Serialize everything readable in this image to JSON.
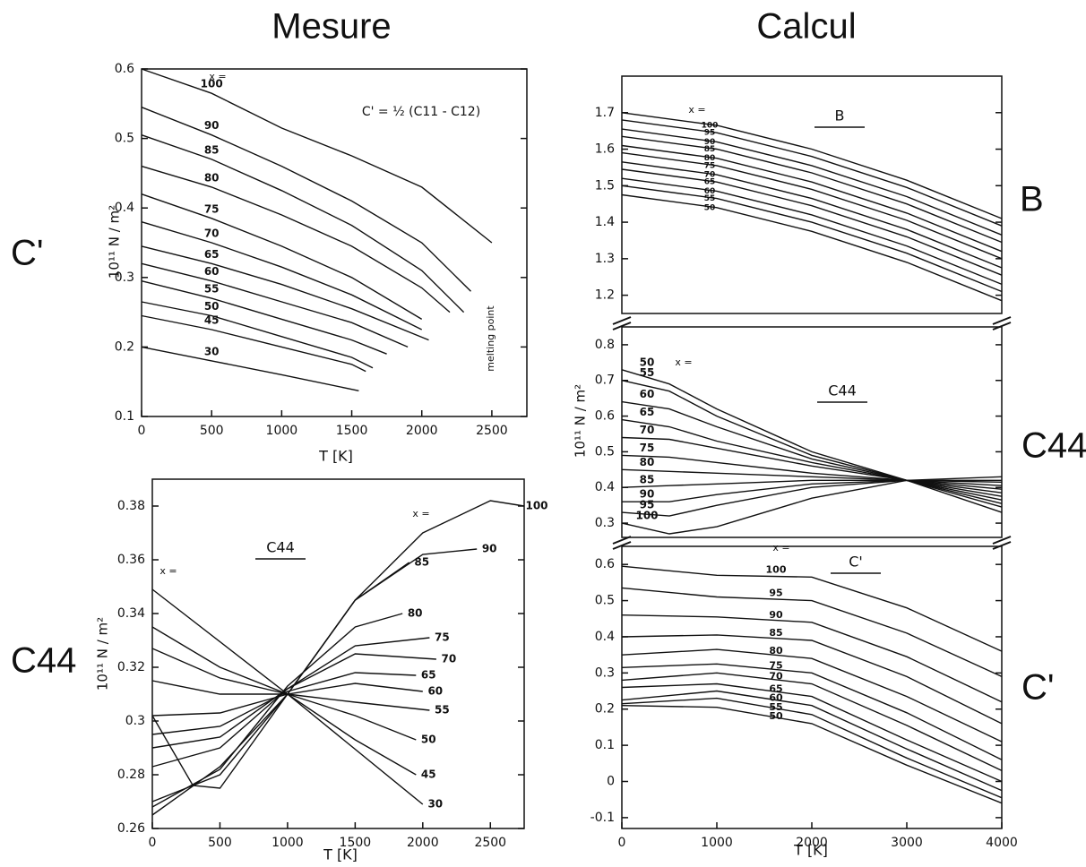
{
  "headers": {
    "left": "Mesure",
    "right": "Calcul"
  },
  "side_labels": [
    "C'",
    "C44",
    "B",
    "C44",
    "C'"
  ],
  "chart_data": [
    {
      "type": "line",
      "title": "C' = ½ (C11 - C12)",
      "x_label": "T [K]",
      "y_label": "10¹¹ N / m²",
      "color": "#111111",
      "annotations": [
        "x =",
        "melting point"
      ],
      "xlim": [
        0,
        2750
      ],
      "ylim": [
        0.1,
        0.6
      ],
      "xticks": [
        0,
        500,
        1000,
        1500,
        2000,
        2500
      ],
      "yticks": [
        0.1,
        0.2,
        0.3,
        0.4,
        0.5,
        0.6
      ],
      "series": [
        {
          "name": "100",
          "x": [
            0,
            500,
            1000,
            1500,
            2000,
            2500
          ],
          "values": [
            0.6,
            0.565,
            0.515,
            0.475,
            0.43,
            0.35
          ]
        },
        {
          "name": "90",
          "x": [
            0,
            500,
            1000,
            1500,
            2000,
            2350
          ],
          "values": [
            0.545,
            0.505,
            0.46,
            0.41,
            0.35,
            0.28
          ]
        },
        {
          "name": "85",
          "x": [
            0,
            500,
            1000,
            1500,
            2000,
            2300
          ],
          "values": [
            0.505,
            0.47,
            0.425,
            0.375,
            0.31,
            0.25
          ]
        },
        {
          "name": "80",
          "x": [
            0,
            500,
            1000,
            1500,
            2000,
            2200
          ],
          "values": [
            0.46,
            0.43,
            0.39,
            0.345,
            0.285,
            0.25
          ]
        },
        {
          "name": "75",
          "x": [
            0,
            500,
            1000,
            1500,
            2000
          ],
          "values": [
            0.42,
            0.385,
            0.345,
            0.3,
            0.24
          ]
        },
        {
          "name": "70",
          "x": [
            0,
            500,
            1000,
            1500,
            2000
          ],
          "values": [
            0.38,
            0.35,
            0.315,
            0.275,
            0.225
          ]
        },
        {
          "name": "65",
          "x": [
            0,
            500,
            1000,
            1500,
            2050
          ],
          "values": [
            0.345,
            0.32,
            0.29,
            0.255,
            0.21
          ]
        },
        {
          "name": "60",
          "x": [
            0,
            500,
            1000,
            1500,
            1900
          ],
          "values": [
            0.32,
            0.295,
            0.265,
            0.235,
            0.2
          ]
        },
        {
          "name": "55",
          "x": [
            0,
            500,
            1000,
            1500,
            1750
          ],
          "values": [
            0.295,
            0.27,
            0.24,
            0.21,
            0.19
          ]
        },
        {
          "name": "50",
          "x": [
            0,
            500,
            1000,
            1500,
            1650
          ],
          "values": [
            0.265,
            0.245,
            0.215,
            0.185,
            0.17
          ]
        },
        {
          "name": "45",
          "x": [
            0,
            500,
            1000,
            1500,
            1600
          ],
          "values": [
            0.245,
            0.225,
            0.2,
            0.175,
            0.165
          ]
        },
        {
          "name": "30",
          "x": [
            0,
            500,
            1000,
            1550
          ],
          "values": [
            0.2,
            0.18,
            0.16,
            0.137
          ]
        }
      ]
    },
    {
      "type": "line",
      "title": "C44",
      "x_label": "T [K]",
      "y_label": "10¹¹ N / m²",
      "color": "#111111",
      "annotations": [
        "x =",
        "x ="
      ],
      "xlim": [
        0,
        2750
      ],
      "ylim": [
        0.26,
        0.39
      ],
      "xticks": [
        0,
        500,
        1000,
        1500,
        2000,
        2500
      ],
      "yticks": [
        0.26,
        0.28,
        0.3,
        0.32,
        0.34,
        0.36,
        0.38
      ],
      "series": [
        {
          "name": "30",
          "x": [
            0,
            1000,
            2000
          ],
          "values": [
            0.349,
            0.31,
            0.269
          ]
        },
        {
          "name": "45",
          "x": [
            0,
            500,
            1000,
            1500,
            1950
          ],
          "values": [
            0.335,
            0.32,
            0.31,
            0.293,
            0.28
          ]
        },
        {
          "name": "50",
          "x": [
            0,
            500,
            1000,
            1500,
            1950
          ],
          "values": [
            0.327,
            0.316,
            0.31,
            0.302,
            0.293
          ]
        },
        {
          "name": "55",
          "x": [
            0,
            500,
            1000,
            1500,
            2050
          ],
          "values": [
            0.315,
            0.31,
            0.31,
            0.307,
            0.304
          ]
        },
        {
          "name": "60",
          "x": [
            0,
            500,
            1000,
            1500,
            2000
          ],
          "values": [
            0.302,
            0.303,
            0.31,
            0.314,
            0.311
          ]
        },
        {
          "name": "65",
          "x": [
            0,
            500,
            1000,
            1500,
            1950
          ],
          "values": [
            0.295,
            0.298,
            0.311,
            0.318,
            0.317
          ]
        },
        {
          "name": "70",
          "x": [
            0,
            500,
            1000,
            1500,
            2100
          ],
          "values": [
            0.29,
            0.294,
            0.312,
            0.325,
            0.323
          ]
        },
        {
          "name": "75",
          "x": [
            0,
            500,
            1000,
            1500,
            2050
          ],
          "values": [
            0.283,
            0.29,
            0.312,
            0.328,
            0.331
          ]
        },
        {
          "name": "80",
          "x": [
            0,
            500,
            1000,
            1500,
            1850
          ],
          "values": [
            0.268,
            0.282,
            0.313,
            0.335,
            0.34
          ]
        },
        {
          "name": "85",
          "x": [
            0,
            500,
            1000,
            1500,
            1900
          ],
          "values": [
            0.265,
            0.283,
            0.31,
            0.345,
            0.359
          ]
        },
        {
          "name": "90",
          "x": [
            0,
            500,
            1000,
            1500,
            2000,
            2400
          ],
          "values": [
            0.27,
            0.28,
            0.31,
            0.345,
            0.362,
            0.364
          ]
        },
        {
          "name": "100",
          "x": [
            0,
            300,
            500,
            1000,
            1500,
            2000,
            2500,
            2750
          ],
          "values": [
            0.302,
            0.276,
            0.275,
            0.31,
            0.345,
            0.37,
            0.382,
            0.38
          ]
        }
      ]
    },
    {
      "type": "line",
      "title": "B",
      "color": "#111111",
      "annotations": [
        "x ="
      ],
      "xlim": [
        0,
        4000
      ],
      "ylim": [
        1.15,
        1.8
      ],
      "yticks": [
        1.2,
        1.3,
        1.4,
        1.5,
        1.6,
        1.7
      ],
      "series": [
        {
          "name": "100",
          "x": [
            0,
            1000,
            2000,
            3000,
            4000
          ],
          "values": [
            1.7,
            1.665,
            1.6,
            1.515,
            1.41
          ]
        },
        {
          "name": "95",
          "x": [
            0,
            1000,
            2000,
            3000,
            4000
          ],
          "values": [
            1.68,
            1.645,
            1.58,
            1.495,
            1.39
          ]
        },
        {
          "name": "90",
          "x": [
            0,
            1000,
            2000,
            3000,
            4000
          ],
          "values": [
            1.655,
            1.62,
            1.555,
            1.47,
            1.365
          ]
        },
        {
          "name": "85",
          "x": [
            0,
            1000,
            2000,
            3000,
            4000
          ],
          "values": [
            1.635,
            1.6,
            1.535,
            1.45,
            1.345
          ]
        },
        {
          "name": "80",
          "x": [
            0,
            1000,
            2000,
            3000,
            4000
          ],
          "values": [
            1.61,
            1.575,
            1.51,
            1.425,
            1.32
          ]
        },
        {
          "name": "75",
          "x": [
            0,
            1000,
            2000,
            3000,
            4000
          ],
          "values": [
            1.59,
            1.555,
            1.49,
            1.405,
            1.3
          ]
        },
        {
          "name": "70",
          "x": [
            0,
            1000,
            2000,
            3000,
            4000
          ],
          "values": [
            1.565,
            1.53,
            1.465,
            1.38,
            1.275
          ]
        },
        {
          "name": "65",
          "x": [
            0,
            1000,
            2000,
            3000,
            4000
          ],
          "values": [
            1.545,
            1.51,
            1.445,
            1.36,
            1.255
          ]
        },
        {
          "name": "60",
          "x": [
            0,
            1000,
            2000,
            3000,
            4000
          ],
          "values": [
            1.52,
            1.485,
            1.42,
            1.335,
            1.23
          ]
        },
        {
          "name": "55",
          "x": [
            0,
            1000,
            2000,
            3000,
            4000
          ],
          "values": [
            1.5,
            1.465,
            1.4,
            1.315,
            1.21
          ]
        },
        {
          "name": "50",
          "x": [
            0,
            1000,
            2000,
            3000,
            4000
          ],
          "values": [
            1.475,
            1.44,
            1.375,
            1.29,
            1.185
          ]
        }
      ]
    },
    {
      "type": "line",
      "title": "C44",
      "y_label": "10¹¹ N / m²",
      "color": "#111111",
      "annotations": [
        "x ="
      ],
      "xlim": [
        0,
        4000
      ],
      "ylim": [
        0.26,
        0.85
      ],
      "yticks": [
        0.3,
        0.4,
        0.5,
        0.6,
        0.7,
        0.8
      ],
      "series": [
        {
          "name": "50",
          "x": [
            0,
            500,
            1000,
            2000,
            3000,
            4000
          ],
          "values": [
            0.73,
            0.69,
            0.62,
            0.5,
            0.42,
            0.33
          ]
        },
        {
          "name": "55",
          "x": [
            0,
            500,
            1000,
            2000,
            3000,
            4000
          ],
          "values": [
            0.7,
            0.67,
            0.6,
            0.49,
            0.42,
            0.345
          ]
        },
        {
          "name": "60",
          "x": [
            0,
            500,
            1000,
            2000,
            3000,
            4000
          ],
          "values": [
            0.64,
            0.62,
            0.57,
            0.48,
            0.42,
            0.355
          ]
        },
        {
          "name": "65",
          "x": [
            0,
            500,
            1000,
            2000,
            3000,
            4000
          ],
          "values": [
            0.59,
            0.57,
            0.53,
            0.47,
            0.42,
            0.365
          ]
        },
        {
          "name": "70",
          "x": [
            0,
            500,
            1000,
            2000,
            3000,
            4000
          ],
          "values": [
            0.54,
            0.535,
            0.51,
            0.46,
            0.42,
            0.375
          ]
        },
        {
          "name": "75",
          "x": [
            0,
            500,
            1000,
            2000,
            3000,
            4000
          ],
          "values": [
            0.49,
            0.485,
            0.47,
            0.44,
            0.42,
            0.385
          ]
        },
        {
          "name": "80",
          "x": [
            0,
            500,
            1000,
            2000,
            3000,
            4000
          ],
          "values": [
            0.45,
            0.445,
            0.44,
            0.43,
            0.42,
            0.395
          ]
        },
        {
          "name": "85",
          "x": [
            0,
            500,
            1000,
            2000,
            3000,
            4000
          ],
          "values": [
            0.4,
            0.405,
            0.41,
            0.42,
            0.42,
            0.405
          ]
        },
        {
          "name": "90",
          "x": [
            0,
            500,
            1000,
            2000,
            3000,
            4000
          ],
          "values": [
            0.36,
            0.36,
            0.38,
            0.41,
            0.42,
            0.415
          ]
        },
        {
          "name": "95",
          "x": [
            0,
            500,
            1000,
            2000,
            3000,
            4000
          ],
          "values": [
            0.33,
            0.32,
            0.35,
            0.4,
            0.42,
            0.42
          ]
        },
        {
          "name": "100",
          "x": [
            0,
            500,
            1000,
            2000,
            3000,
            4000
          ],
          "values": [
            0.3,
            0.27,
            0.29,
            0.37,
            0.42,
            0.43
          ]
        }
      ]
    },
    {
      "type": "line",
      "title": "C'",
      "x_label": "T [K]",
      "color": "#111111",
      "annotations": [
        "x ="
      ],
      "xlim": [
        0,
        4000
      ],
      "ylim": [
        -0.13,
        0.65
      ],
      "xticks": [
        0,
        1000,
        2000,
        3000,
        4000
      ],
      "yticks": [
        -0.1,
        0,
        0.1,
        0.2,
        0.3,
        0.4,
        0.5,
        0.6
      ],
      "series": [
        {
          "name": "100",
          "x": [
            0,
            1000,
            2000,
            3000,
            4000
          ],
          "values": [
            0.595,
            0.57,
            0.565,
            0.48,
            0.36
          ]
        },
        {
          "name": "95",
          "x": [
            0,
            1000,
            2000,
            3000,
            4000
          ],
          "values": [
            0.535,
            0.51,
            0.5,
            0.41,
            0.29
          ]
        },
        {
          "name": "90",
          "x": [
            0,
            1000,
            2000,
            3000,
            4000
          ],
          "values": [
            0.46,
            0.455,
            0.44,
            0.345,
            0.22
          ]
        },
        {
          "name": "85",
          "x": [
            0,
            1000,
            2000,
            3000,
            4000
          ],
          "values": [
            0.4,
            0.405,
            0.39,
            0.29,
            0.16
          ]
        },
        {
          "name": "80",
          "x": [
            0,
            1000,
            2000,
            3000,
            4000
          ],
          "values": [
            0.35,
            0.365,
            0.34,
            0.235,
            0.11
          ]
        },
        {
          "name": "75",
          "x": [
            0,
            1000,
            2000,
            3000,
            4000
          ],
          "values": [
            0.315,
            0.325,
            0.3,
            0.19,
            0.06
          ]
        },
        {
          "name": "70",
          "x": [
            0,
            1000,
            2000,
            3000,
            4000
          ],
          "values": [
            0.28,
            0.3,
            0.27,
            0.155,
            0.03
          ]
        },
        {
          "name": "65",
          "x": [
            0,
            1000,
            2000,
            3000,
            4000
          ],
          "values": [
            0.26,
            0.27,
            0.235,
            0.115,
            0
          ]
        },
        {
          "name": "60",
          "x": [
            0,
            1000,
            2000,
            3000,
            4000
          ],
          "values": [
            0.225,
            0.25,
            0.21,
            0.09,
            -0.025
          ]
        },
        {
          "name": "55",
          "x": [
            0,
            1000,
            2000,
            3000,
            4000
          ],
          "values": [
            0.215,
            0.23,
            0.185,
            0.065,
            -0.045
          ]
        },
        {
          "name": "50",
          "x": [
            0,
            1000,
            2000,
            3000,
            4000
          ],
          "values": [
            0.21,
            0.205,
            0.16,
            0.045,
            -0.06
          ]
        }
      ]
    }
  ]
}
